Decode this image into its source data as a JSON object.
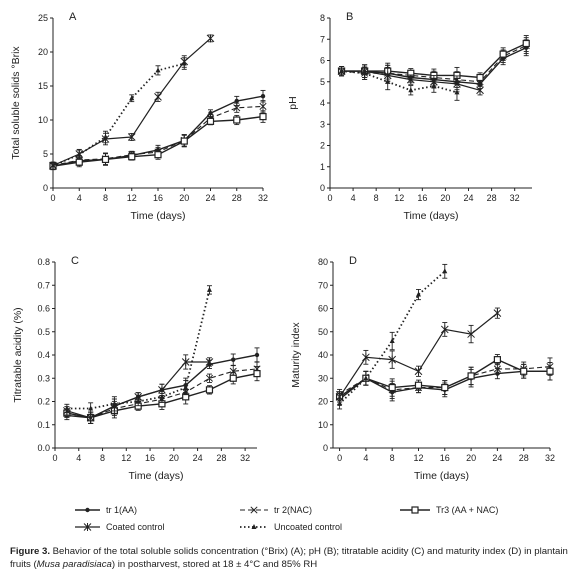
{
  "legend": {
    "items": [
      {
        "id": "tr1",
        "label": "tr 1(AA)"
      },
      {
        "id": "tr2",
        "label": "tr 2(NAC)"
      },
      {
        "id": "tr3",
        "label": "Tr3 (AA + NAC)"
      },
      {
        "id": "coated",
        "label": "Coated control"
      },
      {
        "id": "uncoated",
        "label": "Uncoated control"
      }
    ]
  },
  "caption": {
    "prefix": "Figure 3.",
    "text_before": " Behavior of the total soluble solids concentration (°Brix) (A); pH (B); titratable acidity (C) and maturity index (D) in plantain fruits (",
    "species": "Musa paradisiaca",
    "text_after": ") in postharvest, stored at 18 ± 4°C and 85% RH"
  },
  "chart_data": [
    {
      "panel": "A",
      "type": "line",
      "xlabel": "Time (days)",
      "ylabel": "Total soluble solids °Brix",
      "xlim": [
        0,
        32
      ],
      "ylim": [
        0,
        25
      ],
      "xticks": [
        0,
        4,
        8,
        12,
        16,
        20,
        24,
        28,
        32
      ],
      "yticks": [
        0,
        5,
        10,
        15,
        20,
        25
      ],
      "series": [
        {
          "name": "tr 1(AA)",
          "x": [
            0,
            4,
            8,
            12,
            16,
            20,
            24,
            28,
            32
          ],
          "y": [
            3.2,
            4.0,
            4.2,
            4.8,
            5.6,
            7.0,
            11.0,
            12.8,
            13.5
          ]
        },
        {
          "name": "tr 2(NAC)",
          "x": [
            0,
            4,
            8,
            12,
            16,
            20,
            24,
            28,
            32
          ],
          "y": [
            3.3,
            4.1,
            4.3,
            4.9,
            5.3,
            7.0,
            10.3,
            11.8,
            12.0
          ]
        },
        {
          "name": "Tr3 (AA + NAC)",
          "x": [
            0,
            4,
            8,
            12,
            16,
            20,
            24,
            28,
            32
          ],
          "y": [
            3.2,
            3.8,
            4.2,
            4.6,
            4.9,
            6.9,
            9.8,
            10.0,
            10.5
          ]
        },
        {
          "name": "Coated control",
          "x": [
            0,
            4,
            8,
            12,
            16,
            20,
            24
          ],
          "y": [
            3.3,
            5.0,
            7.2,
            7.5,
            13.4,
            18.6,
            22.0
          ]
        },
        {
          "name": "Uncoated control",
          "x": [
            0,
            4,
            8,
            12,
            16,
            20
          ],
          "y": [
            3.3,
            4.9,
            7.5,
            13.2,
            17.3,
            18.3
          ]
        }
      ]
    },
    {
      "panel": "B",
      "type": "line",
      "xlabel": "Time (days)",
      "ylabel": "pH",
      "xlim": [
        0,
        35
      ],
      "ylim": [
        0,
        8
      ],
      "xticks": [
        0,
        4,
        8,
        12,
        16,
        20,
        24,
        28,
        32
      ],
      "yticks": [
        0,
        1,
        2,
        3,
        4,
        5,
        6,
        7,
        8
      ],
      "series": [
        {
          "name": "tr 1(AA)",
          "x": [
            2,
            6,
            10,
            14,
            18,
            22,
            26,
            30,
            34
          ],
          "y": [
            5.5,
            5.5,
            5.4,
            5.2,
            5.1,
            5.0,
            4.9,
            6.1,
            6.6
          ]
        },
        {
          "name": "tr 2(NAC)",
          "x": [
            2,
            6,
            10,
            14,
            18,
            22,
            26,
            30,
            34
          ],
          "y": [
            5.5,
            5.4,
            5.4,
            5.3,
            5.2,
            5.1,
            5.0,
            6.2,
            6.7
          ]
        },
        {
          "name": "Tr3 (AA + NAC)",
          "x": [
            2,
            6,
            10,
            14,
            18,
            22,
            26,
            30,
            34
          ],
          "y": [
            5.5,
            5.5,
            5.5,
            5.4,
            5.3,
            5.3,
            5.2,
            6.3,
            6.8
          ]
        },
        {
          "name": "Coated control",
          "x": [
            2,
            6,
            10,
            14,
            18,
            22,
            26
          ],
          "y": [
            5.5,
            5.5,
            5.3,
            5.1,
            5.0,
            4.9,
            4.6
          ]
        },
        {
          "name": "Uncoated control",
          "x": [
            2,
            6,
            10,
            14,
            18,
            22
          ],
          "y": [
            5.5,
            5.4,
            5.0,
            4.6,
            4.8,
            4.5
          ]
        }
      ]
    },
    {
      "panel": "C",
      "type": "line",
      "xlabel": "Time (days)",
      "ylabel": "Titratable acidity (%)",
      "xlim": [
        0,
        34
      ],
      "ylim": [
        0,
        0.8
      ],
      "xticks": [
        0,
        4,
        8,
        12,
        16,
        20,
        24,
        28,
        32
      ],
      "yticks": [
        0,
        0.1,
        0.2,
        0.3,
        0.4,
        0.5,
        0.6,
        0.7,
        0.8
      ],
      "series": [
        {
          "name": "tr 1(AA)",
          "x": [
            2,
            6,
            10,
            14,
            18,
            22,
            26,
            30,
            34
          ],
          "y": [
            0.14,
            0.13,
            0.18,
            0.22,
            0.25,
            0.27,
            0.36,
            0.38,
            0.4
          ]
        },
        {
          "name": "tr 2(NAC)",
          "x": [
            2,
            6,
            10,
            14,
            18,
            22,
            26,
            30,
            34
          ],
          "y": [
            0.15,
            0.13,
            0.17,
            0.19,
            0.21,
            0.24,
            0.3,
            0.33,
            0.34
          ]
        },
        {
          "name": "Tr3 (AA + NAC)",
          "x": [
            2,
            6,
            10,
            14,
            18,
            22,
            26,
            30,
            34
          ],
          "y": [
            0.15,
            0.13,
            0.16,
            0.18,
            0.19,
            0.22,
            0.25,
            0.3,
            0.32
          ]
        },
        {
          "name": "Coated control",
          "x": [
            2,
            6,
            10,
            14,
            18,
            22,
            26
          ],
          "y": [
            0.16,
            0.13,
            0.18,
            0.22,
            0.25,
            0.37,
            0.37
          ]
        },
        {
          "name": "Uncoated control",
          "x": [
            2,
            6,
            10,
            14,
            18,
            22,
            26
          ],
          "y": [
            0.17,
            0.17,
            0.19,
            0.2,
            0.22,
            0.26,
            0.68
          ]
        }
      ]
    },
    {
      "panel": "D",
      "type": "line",
      "xlabel": "Time (days)",
      "ylabel": "Maturity index",
      "xlim": [
        -1,
        32
      ],
      "ylim": [
        0,
        80
      ],
      "xticks": [
        0,
        4,
        8,
        12,
        16,
        20,
        24,
        28,
        32
      ],
      "yticks": [
        0,
        10,
        20,
        30,
        40,
        50,
        60,
        70,
        80
      ],
      "series": [
        {
          "name": "tr 1(AA)",
          "x": [
            0,
            4,
            8,
            12,
            16,
            20,
            24,
            28,
            32
          ],
          "y": [
            21,
            30,
            24,
            26,
            25,
            30,
            32,
            33,
            33
          ]
        },
        {
          "name": "tr 2(NAC)",
          "x": [
            0,
            4,
            8,
            12,
            16,
            20,
            24,
            28,
            32
          ],
          "y": [
            23,
            30,
            25,
            26,
            26,
            31,
            34,
            34,
            35
          ]
        },
        {
          "name": "Tr3 (AA + NAC)",
          "x": [
            0,
            4,
            8,
            12,
            16,
            20,
            24,
            28,
            32
          ],
          "y": [
            22,
            30,
            26,
            27,
            26,
            31,
            38,
            33,
            33
          ]
        },
        {
          "name": "Coated control",
          "x": [
            0,
            4,
            8,
            12,
            16,
            20,
            24
          ],
          "y": [
            22,
            39,
            38,
            33,
            51,
            49,
            58
          ]
        },
        {
          "name": "Uncoated control",
          "x": [
            0,
            4,
            8,
            12,
            16
          ],
          "y": [
            19,
            30,
            46,
            66,
            76
          ]
        }
      ]
    }
  ]
}
